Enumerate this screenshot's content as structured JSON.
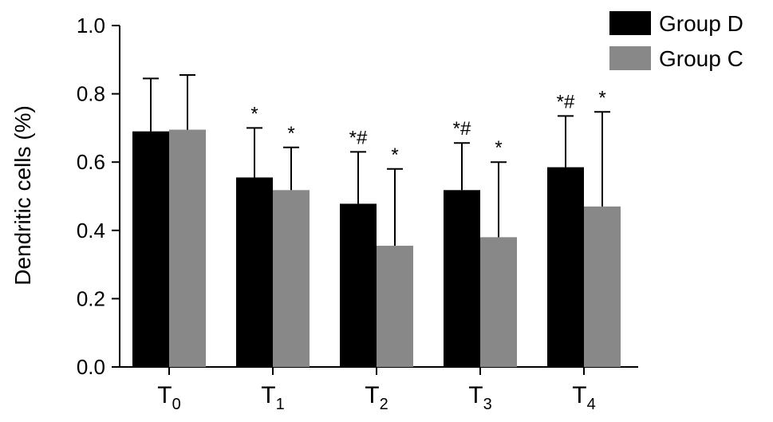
{
  "chart_data": {
    "type": "bar",
    "ylabel": "Dendritic cells (%)",
    "xlabel": "",
    "ylim": [
      0.0,
      1.0
    ],
    "yticks": [
      "0.0",
      "0.2",
      "0.4",
      "0.6",
      "0.8",
      "1.0"
    ],
    "categories": [
      {
        "main": "T",
        "sub": "0"
      },
      {
        "main": "T",
        "sub": "1"
      },
      {
        "main": "T",
        "sub": "2"
      },
      {
        "main": "T",
        "sub": "3"
      },
      {
        "main": "T",
        "sub": "4"
      }
    ],
    "series": [
      {
        "name": "Group D",
        "color": "#000000",
        "values": [
          0.69,
          0.555,
          0.478,
          0.518,
          0.585
        ],
        "errors": [
          0.155,
          0.145,
          0.152,
          0.138,
          0.15
        ],
        "annotations": [
          "",
          "*",
          "*#",
          "*#",
          "*#"
        ]
      },
      {
        "name": "Group C",
        "color": "#888888",
        "values": [
          0.695,
          0.518,
          0.355,
          0.38,
          0.47
        ],
        "errors": [
          0.16,
          0.125,
          0.225,
          0.22,
          0.277
        ],
        "annotations": [
          "",
          "*",
          "*",
          "*",
          "*"
        ]
      }
    ],
    "legend_position": "top-right",
    "grid": false
  }
}
